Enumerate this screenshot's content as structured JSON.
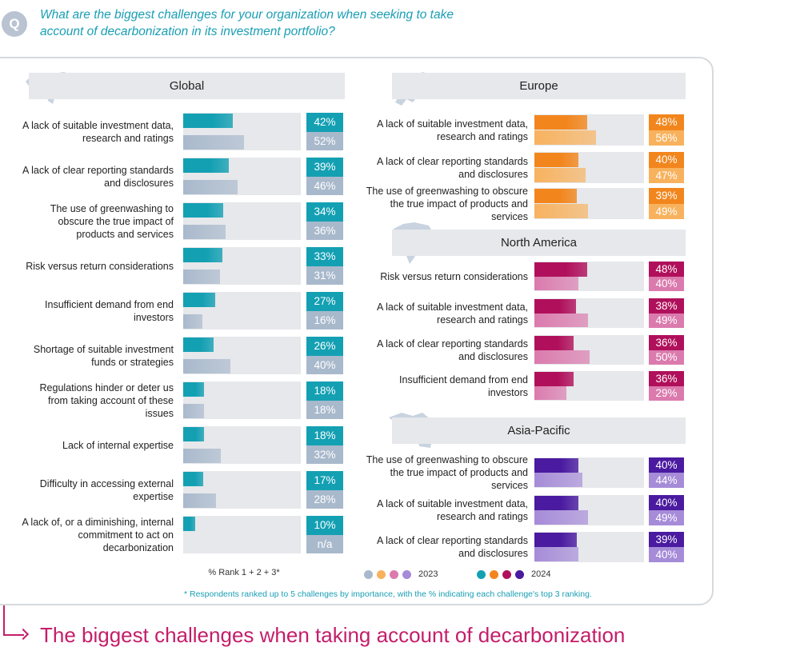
{
  "question": {
    "icon": "Q",
    "text": "What are the biggest challenges for your organization when seeking to take account of decarbonization in its investment portfolio?"
  },
  "title": "The biggest challenges when taking account of decarbonization",
  "rank_note": "% Rank 1 + 2 + 3*",
  "footnote": "* Respondents ranked up to 5 challenges by importance, with the % indicating each challenge's top 3 ranking.",
  "legend": {
    "label_2023": "2023",
    "label_2024": "2024"
  },
  "colors": {
    "global_2024": "#14a0b3",
    "global_2023": "#a9b9cc",
    "europe_2024": "#f2861d",
    "europe_2023": "#f8b25e",
    "north_america_2024": "#b0105b",
    "north_america_2023": "#db7aad",
    "asia_pacific_2024": "#4a1aa0",
    "asia_pacific_2023": "#a68bd8"
  },
  "chart_data": [
    {
      "type": "bar",
      "region": "Global",
      "unit": "%",
      "xlim": [
        0,
        100
      ],
      "categories": [
        "A lack of suitable investment data, research and ratings",
        "A lack of clear reporting standards and disclosures",
        "The use of greenwashing to obscure the true impact of products and services",
        "Risk versus return considerations",
        "Insufficient demand from end investors",
        "Shortage of suitable investment funds or strategies",
        "Regulations hinder or deter us from taking account of these issues",
        "Lack of internal expertise",
        "Difficulty in accessing external expertise",
        "A lack of, or a diminishing, internal commitment to act on decarbonization"
      ],
      "series": [
        {
          "name": "2024",
          "values": [
            42,
            39,
            34,
            33,
            27,
            26,
            18,
            18,
            17,
            10
          ],
          "labels": [
            "42%",
            "39%",
            "34%",
            "33%",
            "27%",
            "26%",
            "18%",
            "18%",
            "17%",
            "10%"
          ]
        },
        {
          "name": "2023",
          "values": [
            52,
            46,
            36,
            31,
            16,
            40,
            18,
            32,
            28,
            null
          ],
          "labels": [
            "52%",
            "46%",
            "36%",
            "31%",
            "16%",
            "40%",
            "18%",
            "32%",
            "28%",
            "n/a"
          ]
        }
      ]
    },
    {
      "type": "bar",
      "region": "Europe",
      "unit": "%",
      "xlim": [
        0,
        100
      ],
      "categories": [
        "A lack of suitable investment data, research and ratings",
        "A lack of clear reporting standards and disclosures",
        "The use of greenwashing to obscure the true impact of products and services"
      ],
      "series": [
        {
          "name": "2024",
          "values": [
            48,
            40,
            39
          ],
          "labels": [
            "48%",
            "40%",
            "39%"
          ]
        },
        {
          "name": "2023",
          "values": [
            56,
            47,
            49
          ],
          "labels": [
            "56%",
            "47%",
            "49%"
          ]
        }
      ]
    },
    {
      "type": "bar",
      "region": "North America",
      "unit": "%",
      "xlim": [
        0,
        100
      ],
      "categories": [
        "Risk versus return considerations",
        "A lack of suitable investment data, research and ratings",
        "A lack of clear reporting standards and disclosures",
        "Insufficient demand from end investors"
      ],
      "series": [
        {
          "name": "2024",
          "values": [
            48,
            38,
            36,
            36
          ],
          "labels": [
            "48%",
            "38%",
            "36%",
            "36%"
          ]
        },
        {
          "name": "2023",
          "values": [
            40,
            49,
            50,
            29
          ],
          "labels": [
            "40%",
            "49%",
            "50%",
            "29%"
          ]
        }
      ]
    },
    {
      "type": "bar",
      "region": "Asia-Pacific",
      "unit": "%",
      "xlim": [
        0,
        100
      ],
      "categories": [
        "The use of greenwashing to obscure the true impact of products and services",
        "A lack of suitable investment data, research and ratings",
        "A lack of clear reporting standards and disclosures"
      ],
      "series": [
        {
          "name": "2024",
          "values": [
            40,
            40,
            39
          ],
          "labels": [
            "40%",
            "40%",
            "39%"
          ]
        },
        {
          "name": "2023",
          "values": [
            44,
            49,
            40
          ],
          "labels": [
            "44%",
            "49%",
            "40%"
          ]
        }
      ]
    }
  ]
}
